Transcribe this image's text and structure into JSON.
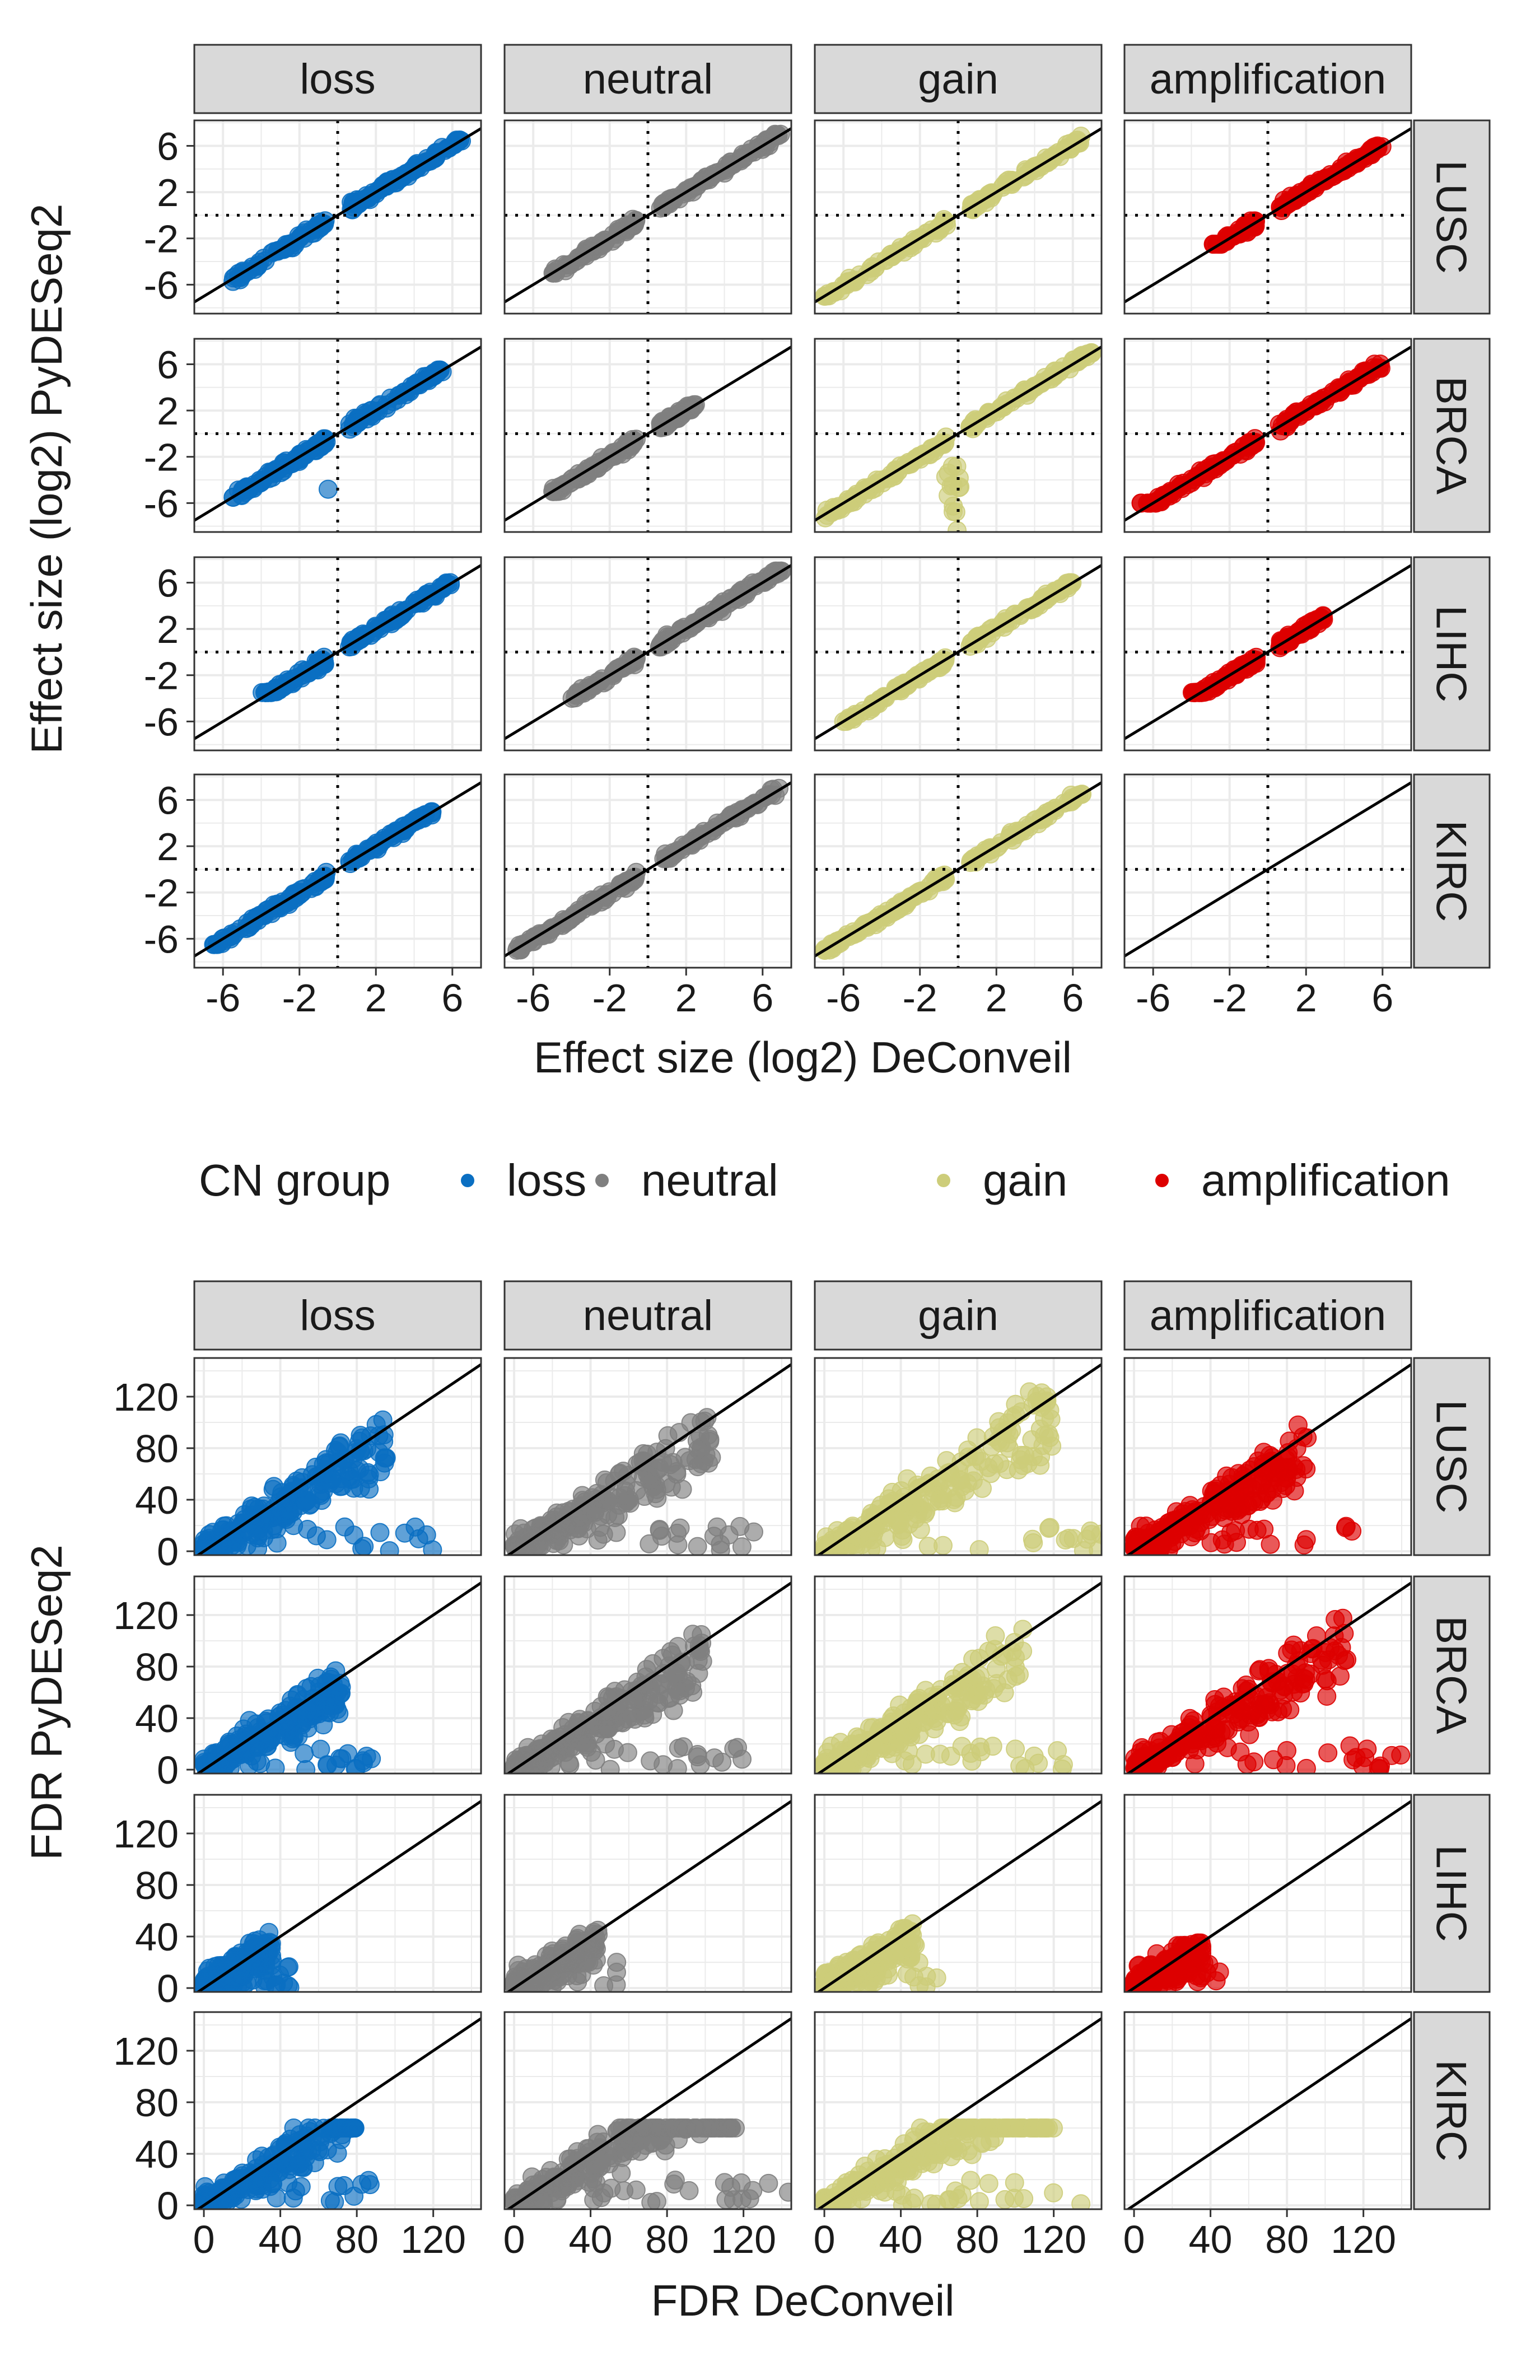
{
  "legend": {
    "title": "CN group",
    "items": [
      {
        "label": "loss",
        "color": "#0a6fc2"
      },
      {
        "label": "neutral",
        "color": "#7f7f7f"
      },
      {
        "label": "gain",
        "color": "#cdcd7a"
      },
      {
        "label": "amplification",
        "color": "#dd0000"
      }
    ]
  },
  "chart_data": [
    {
      "type": "scatter",
      "title": "",
      "xlabel": "Effect size (log2) DeConveil",
      "ylabel": "Effect size (log2) PyDESeq2",
      "xlim": [
        -7.5,
        7.5
      ],
      "ylim": [
        -8.5,
        8.2
      ],
      "xticks": [
        -6,
        -2,
        2,
        6
      ],
      "xtick_labels": [
        "-6",
        "-2",
        "2",
        "6"
      ],
      "yticks": [
        -6,
        -2,
        2,
        6
      ],
      "ytick_labels": [
        "-6",
        "-2",
        "2",
        "6"
      ],
      "reference_lines": {
        "identity": true,
        "vline_x": 0,
        "hline_y": 0
      },
      "column_facets": [
        "loss",
        "neutral",
        "gain",
        "amplification"
      ],
      "row_facets": [
        "LUSC",
        "BRCA",
        "LIHC",
        "KIRC"
      ],
      "panels": [
        {
          "row": "LUSC",
          "col": "loss",
          "x_range": [
            -5.5,
            6.5
          ],
          "y_range": [
            -6.5,
            6.5
          ]
        },
        {
          "row": "LUSC",
          "col": "neutral",
          "x_range": [
            -5,
            7
          ],
          "y_range": [
            -5,
            7
          ]
        },
        {
          "row": "LUSC",
          "col": "gain",
          "x_range": [
            -7,
            6.5
          ],
          "y_range": [
            -7,
            8
          ]
        },
        {
          "row": "LUSC",
          "col": "amplification",
          "x_range": [
            -3,
            6
          ],
          "y_range": [
            -2.5,
            6
          ]
        },
        {
          "row": "BRCA",
          "col": "loss",
          "x_range": [
            -5.5,
            5.5
          ],
          "y_range": [
            -5.5,
            5.5
          ]
        },
        {
          "row": "BRCA",
          "col": "neutral",
          "x_range": [
            -5,
            2.5
          ],
          "y_range": [
            -5,
            2.5
          ]
        },
        {
          "row": "BRCA",
          "col": "gain",
          "x_range": [
            -7,
            7
          ],
          "y_range": [
            -9,
            7
          ]
        },
        {
          "row": "BRCA",
          "col": "amplification",
          "x_range": [
            -7,
            6
          ],
          "y_range": [
            -6,
            7
          ]
        },
        {
          "row": "LIHC",
          "col": "loss",
          "x_range": [
            -4,
            6
          ],
          "y_range": [
            -3.5,
            6
          ]
        },
        {
          "row": "LIHC",
          "col": "neutral",
          "x_range": [
            -4,
            7
          ],
          "y_range": [
            -4,
            7
          ]
        },
        {
          "row": "LIHC",
          "col": "gain",
          "x_range": [
            -6,
            6
          ],
          "y_range": [
            -6,
            6
          ]
        },
        {
          "row": "LIHC",
          "col": "amplification",
          "x_range": [
            -4,
            3
          ],
          "y_range": [
            -3.5,
            3.5
          ]
        },
        {
          "row": "KIRC",
          "col": "loss",
          "x_range": [
            -6.5,
            5
          ],
          "y_range": [
            -6.5,
            5
          ]
        },
        {
          "row": "KIRC",
          "col": "neutral",
          "x_range": [
            -7,
            7
          ],
          "y_range": [
            -7,
            7
          ]
        },
        {
          "row": "KIRC",
          "col": "gain",
          "x_range": [
            -7,
            6.5
          ],
          "y_range": [
            -7,
            6.5
          ]
        },
        {
          "row": "KIRC",
          "col": "amplification",
          "x_range": null,
          "y_range": null
        }
      ]
    },
    {
      "type": "scatter",
      "title": "",
      "xlabel": "FDR DeConveil",
      "ylabel": "FDR PyDESeq2",
      "xlim": [
        -5,
        145
      ],
      "ylim": [
        -3,
        150
      ],
      "xticks": [
        0,
        40,
        80,
        120
      ],
      "xtick_labels": [
        "0",
        "40",
        "80",
        "120"
      ],
      "yticks": [
        0,
        40,
        80,
        120
      ],
      "ytick_labels": [
        "0",
        "40",
        "80",
        "120"
      ],
      "reference_lines": {
        "identity": true
      },
      "column_facets": [
        "loss",
        "neutral",
        "gain",
        "amplification"
      ],
      "row_facets": [
        "LUSC",
        "BRCA",
        "LIHC",
        "KIRC"
      ],
      "panels": [
        {
          "row": "LUSC",
          "col": "loss",
          "x_range": [
            0,
            120
          ],
          "y_range": [
            0,
            145
          ]
        },
        {
          "row": "LUSC",
          "col": "neutral",
          "x_range": [
            0,
            130
          ],
          "y_range": [
            0,
            140
          ]
        },
        {
          "row": "LUSC",
          "col": "gain",
          "x_range": [
            0,
            150
          ],
          "y_range": [
            0,
            148
          ]
        },
        {
          "row": "LUSC",
          "col": "amplification",
          "x_range": [
            0,
            115
          ],
          "y_range": [
            0,
            100
          ]
        },
        {
          "row": "BRCA",
          "col": "loss",
          "x_range": [
            0,
            90
          ],
          "y_range": [
            0,
            90
          ]
        },
        {
          "row": "BRCA",
          "col": "neutral",
          "x_range": [
            0,
            125
          ],
          "y_range": [
            0,
            125
          ]
        },
        {
          "row": "BRCA",
          "col": "gain",
          "x_range": [
            0,
            130
          ],
          "y_range": [
            0,
            125
          ]
        },
        {
          "row": "BRCA",
          "col": "amplification",
          "x_range": [
            0,
            140
          ],
          "y_range": [
            0,
            125
          ]
        },
        {
          "row": "LIHC",
          "col": "loss",
          "x_range": [
            0,
            45
          ],
          "y_range": [
            0,
            60
          ]
        },
        {
          "row": "LIHC",
          "col": "neutral",
          "x_range": [
            0,
            55
          ],
          "y_range": [
            0,
            60
          ]
        },
        {
          "row": "LIHC",
          "col": "gain",
          "x_range": [
            0,
            60
          ],
          "y_range": [
            0,
            55
          ]
        },
        {
          "row": "LIHC",
          "col": "amplification",
          "x_range": [
            0,
            45
          ],
          "y_range": [
            0,
            35
          ]
        },
        {
          "row": "KIRC",
          "col": "loss",
          "x_range": [
            0,
            100
          ],
          "y_range": [
            0,
            60
          ]
        },
        {
          "row": "KIRC",
          "col": "neutral",
          "x_range": [
            0,
            145
          ],
          "y_range": [
            0,
            60
          ]
        },
        {
          "row": "KIRC",
          "col": "gain",
          "x_range": [
            0,
            150
          ],
          "y_range": [
            0,
            60
          ]
        },
        {
          "row": "KIRC",
          "col": "amplification",
          "x_range": null,
          "y_range": null
        }
      ]
    }
  ]
}
